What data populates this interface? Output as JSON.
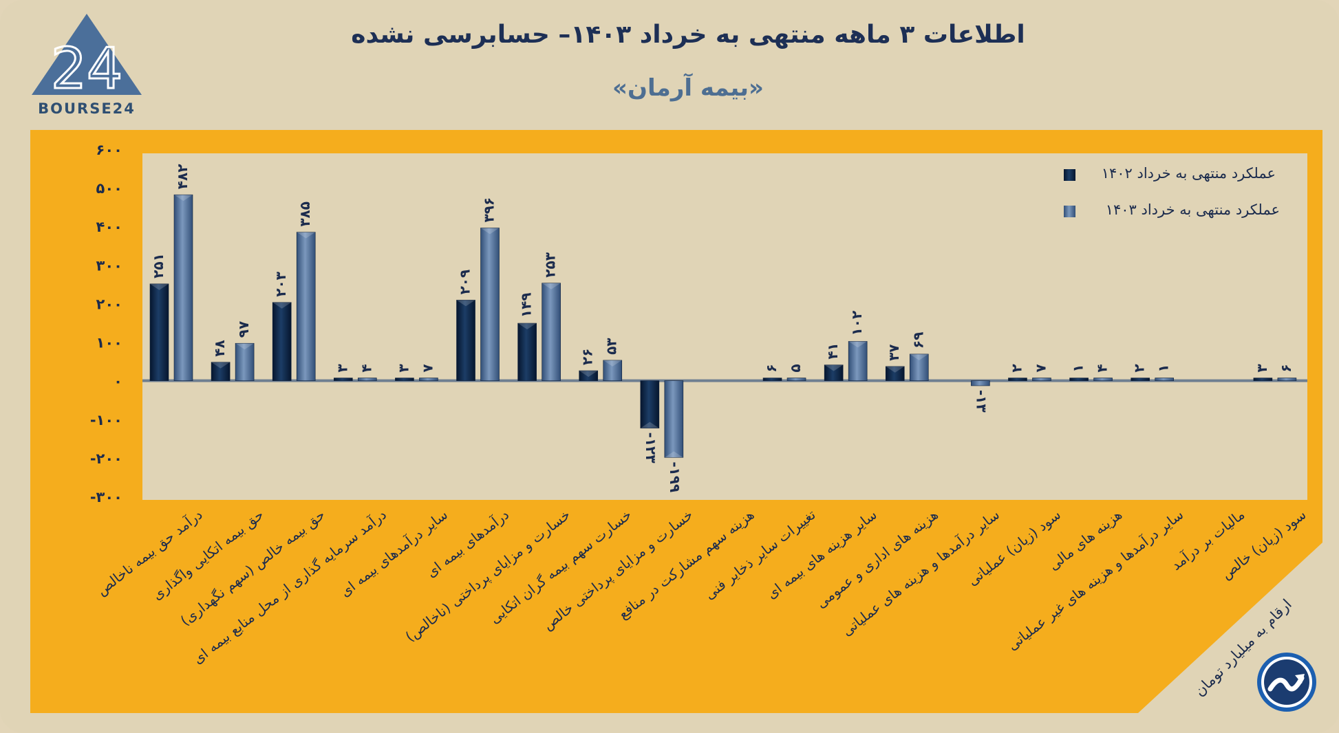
{
  "header": {
    "title": "اطلاعات ۳ ماهه منتهی به خرداد ۱۴۰۳– حسابرسی نشده",
    "subtitle": "«بیمه آرمان»",
    "logo_text": "BOURSE24",
    "logo_mark": "24"
  },
  "footer": {
    "unit_note": "ارقام به میلیارد تومان"
  },
  "colors": {
    "background": "#e0d4b6",
    "panel": "#f5ad1d",
    "plot_area": "#e0d4b6",
    "series_1402": "#10284a",
    "series_1403": "#4d6e97",
    "title": "#1d2f55",
    "subtitle": "#4d6e92"
  },
  "chart_data": {
    "type": "bar",
    "title": "اطلاعات ۳ ماهه منتهی به خرداد ۱۴۰۳– حسابرسی نشده",
    "subtitle": "«بیمه آرمان»",
    "ylim": [
      -300,
      600
    ],
    "yticks": [
      600,
      500,
      400,
      300,
      200,
      100,
      0,
      -100,
      -200,
      -300
    ],
    "ytick_labels": [
      "۶۰۰",
      "۵۰۰",
      "۴۰۰",
      "۳۰۰",
      "۲۰۰",
      "۱۰۰",
      "۰",
      "-۱۰۰",
      "-۲۰۰",
      "-۳۰۰"
    ],
    "legend_position": "top-right",
    "categories": [
      "درآمد حق بیمه ناخالص",
      "حق بیمه اتکایی واگذاری",
      "حق بیمه خالص (سهم نگهداری)",
      "درآمد سرمایه گذاری از محل منابع بیمه ای",
      "سایر درآمدهای بیمه ای",
      "درآمدهای بیمه ای",
      "خسارت و مزایای پرداختی (ناخالص)",
      "خسارت سهم بیمه گران اتکایی",
      "خسارت و مزایای پرداختی خالص",
      "هزینه سهم مشارکت در منافع",
      "تغییرات سایر ذخایر فنی",
      "سایر هزینه های بیمه ای",
      "هزینه های اداری و عمومی",
      "سایر درآمدها و هزینه های عملیاتی",
      "سود (زیان) عملیاتی",
      "هزینه های مالی",
      "سایر درآمدها و هزینه های غیر عملیاتی",
      "مالیات بر درآمد",
      "سود (زیان) خالص"
    ],
    "series": [
      {
        "name": "عملکرد منتهی به خرداد ۱۴۰۲",
        "values": [
          251,
          48,
          203,
          3,
          3,
          209,
          149,
          26,
          -123,
          null,
          6,
          41,
          37,
          null,
          2,
          1,
          2,
          null,
          3
        ],
        "labels": [
          "۲۵۱",
          "۴۸",
          "۲۰۳",
          "۳",
          "۳",
          "۲۰۹",
          "۱۴۹",
          "۲۶",
          "-۱۲۳",
          "",
          "۶",
          "۴۱",
          "۳۷",
          "",
          "۲",
          "۱",
          "۲",
          "",
          "۳"
        ]
      },
      {
        "name": "عملکرد منتهی به خرداد ۱۴۰۳",
        "values": [
          482,
          97,
          385,
          4,
          7,
          396,
          253,
          53,
          -199,
          null,
          5,
          102,
          69,
          -13,
          7,
          4,
          1,
          null,
          6
        ],
        "labels": [
          "۴۸۲",
          "۹۷",
          "۳۸۵",
          "۴",
          "۷",
          "۳۹۶",
          "۲۵۳",
          "۵۳",
          "-۱۹۹",
          "",
          "۵",
          "۱۰۲",
          "۶۹",
          "-۱۳",
          "۷",
          "۴",
          "۱",
          "",
          "۶"
        ]
      }
    ]
  }
}
